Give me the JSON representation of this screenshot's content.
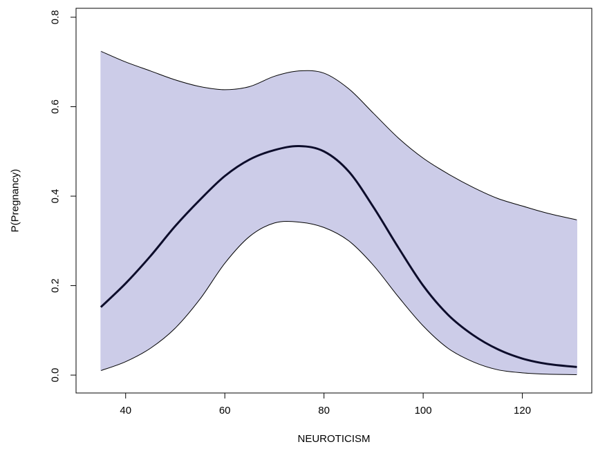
{
  "chart_data": {
    "type": "area",
    "title": "",
    "xlabel": "NEUROTICISM",
    "ylabel": "P(Pregnancy)",
    "xlim": [
      30,
      134
    ],
    "ylim": [
      -0.04,
      0.82
    ],
    "xticks": [
      40,
      60,
      80,
      100,
      120
    ],
    "yticks": [
      0.0,
      0.2,
      0.4,
      0.6,
      0.8
    ],
    "ytick_labels": [
      "0.0",
      "0.2",
      "0.4",
      "0.6",
      "0.8"
    ],
    "grid": false,
    "legend": "none",
    "colors": {
      "band": "#cccce8",
      "line": "#0d0d2b",
      "bound": "#000000"
    },
    "x": [
      35,
      40,
      45,
      50,
      55,
      60,
      65,
      70,
      75,
      80,
      85,
      90,
      95,
      100,
      105,
      110,
      115,
      120,
      125,
      131
    ],
    "series": [
      {
        "role": "fit",
        "values": [
          0.152,
          0.205,
          0.266,
          0.333,
          0.392,
          0.445,
          0.482,
          0.503,
          0.512,
          0.5,
          0.455,
          0.375,
          0.285,
          0.2,
          0.135,
          0.09,
          0.058,
          0.037,
          0.025,
          0.018
        ]
      },
      {
        "role": "upper",
        "values": [
          0.724,
          0.7,
          0.68,
          0.66,
          0.645,
          0.638,
          0.645,
          0.668,
          0.68,
          0.675,
          0.64,
          0.585,
          0.53,
          0.485,
          0.45,
          0.42,
          0.395,
          0.378,
          0.362,
          0.347
        ]
      },
      {
        "role": "lower",
        "values": [
          0.01,
          0.03,
          0.06,
          0.105,
          0.17,
          0.25,
          0.31,
          0.34,
          0.342,
          0.33,
          0.3,
          0.245,
          0.175,
          0.11,
          0.06,
          0.03,
          0.012,
          0.005,
          0.002,
          0.001
        ]
      }
    ]
  }
}
